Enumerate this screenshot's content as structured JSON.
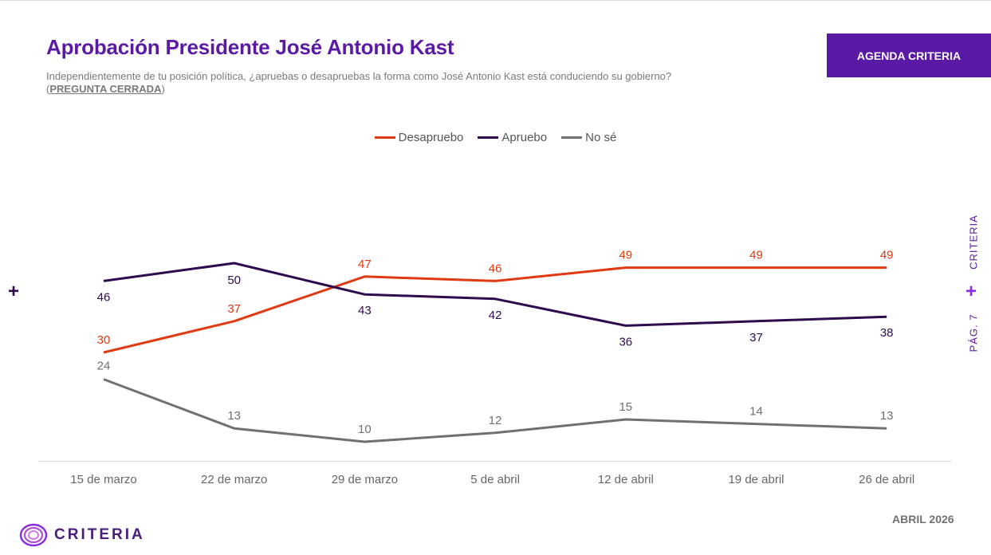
{
  "header": {
    "title": "Aprobación Presidente José Antonio Kast",
    "subtitle_main": "Independientemente de tu posición política, ¿apruebas o desapruebas la forma como José Antonio Kast está conduciendo su gobierno? (",
    "subtitle_closed": "PREGUNTA CERRADA",
    "subtitle_end": ")"
  },
  "agenda_button": {
    "label": "AGENDA CRITERIA"
  },
  "side": {
    "brand": "CRITERIA",
    "page": "PÁG. 7",
    "plus": "+"
  },
  "footer": {
    "date": "ABRIL 2026",
    "logo_text": "CRITERIA"
  },
  "colors": {
    "brand": "#5b1aa6",
    "desapruebo": "#e03a12",
    "apruebo": "#2d0b4e",
    "nose": "#707070"
  },
  "icons": {
    "logo": "criteria-rings-icon",
    "plus": "plus-icon"
  },
  "chart_data": {
    "type": "line",
    "title": "Aprobación Presidente José Antonio Kast",
    "categories": [
      "15 de marzo",
      "22 de marzo",
      "29 de marzo",
      "5 de abril",
      "12 de abril",
      "19 de abril",
      "26 de abril"
    ],
    "series": [
      {
        "name": "Desapruebo",
        "key": "desapruebo",
        "values": [
          30,
          37,
          47,
          46,
          49,
          49,
          49
        ]
      },
      {
        "name": "Apruebo",
        "key": "apruebo",
        "values": [
          46,
          50,
          43,
          42,
          36,
          37,
          38
        ]
      },
      {
        "name": "No sé",
        "key": "nose",
        "values": [
          24,
          13,
          10,
          12,
          15,
          14,
          13
        ]
      }
    ],
    "legend_position": "top-center",
    "grid": false,
    "y_axis_visible": false
  }
}
